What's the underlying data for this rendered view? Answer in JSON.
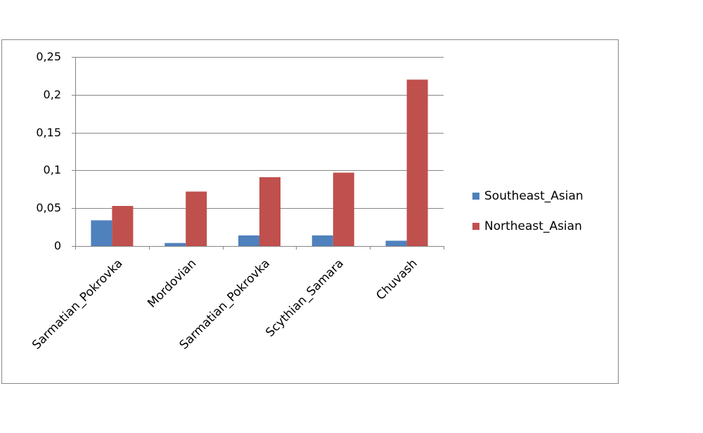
{
  "chart_data": {
    "type": "bar",
    "categories": [
      "Sarmatian_Pokrovka",
      "Mordovian",
      "Sarmatian_Pokrovka",
      "Scythian_Samara",
      "Chuvash"
    ],
    "series": [
      {
        "name": "Southeast_Asian",
        "color": "#4f81bd",
        "values": [
          0.034,
          0.004,
          0.014,
          0.014,
          0.007
        ]
      },
      {
        "name": "Northeast_Asian",
        "color": "#c0504d",
        "values": [
          0.053,
          0.072,
          0.091,
          0.097,
          0.22
        ]
      }
    ],
    "ylim": [
      0,
      0.25
    ],
    "yticks": [
      0,
      {
        "value": 0.05,
        "label": "0,05"
      },
      {
        "value": 0.1,
        "label": "0,1"
      },
      {
        "value": 0.15,
        "label": "0,15"
      },
      {
        "value": 0.2,
        "label": "0,2"
      },
      {
        "value": 0.25,
        "label": "0,25"
      }
    ],
    "grid": true,
    "legend": "right"
  }
}
